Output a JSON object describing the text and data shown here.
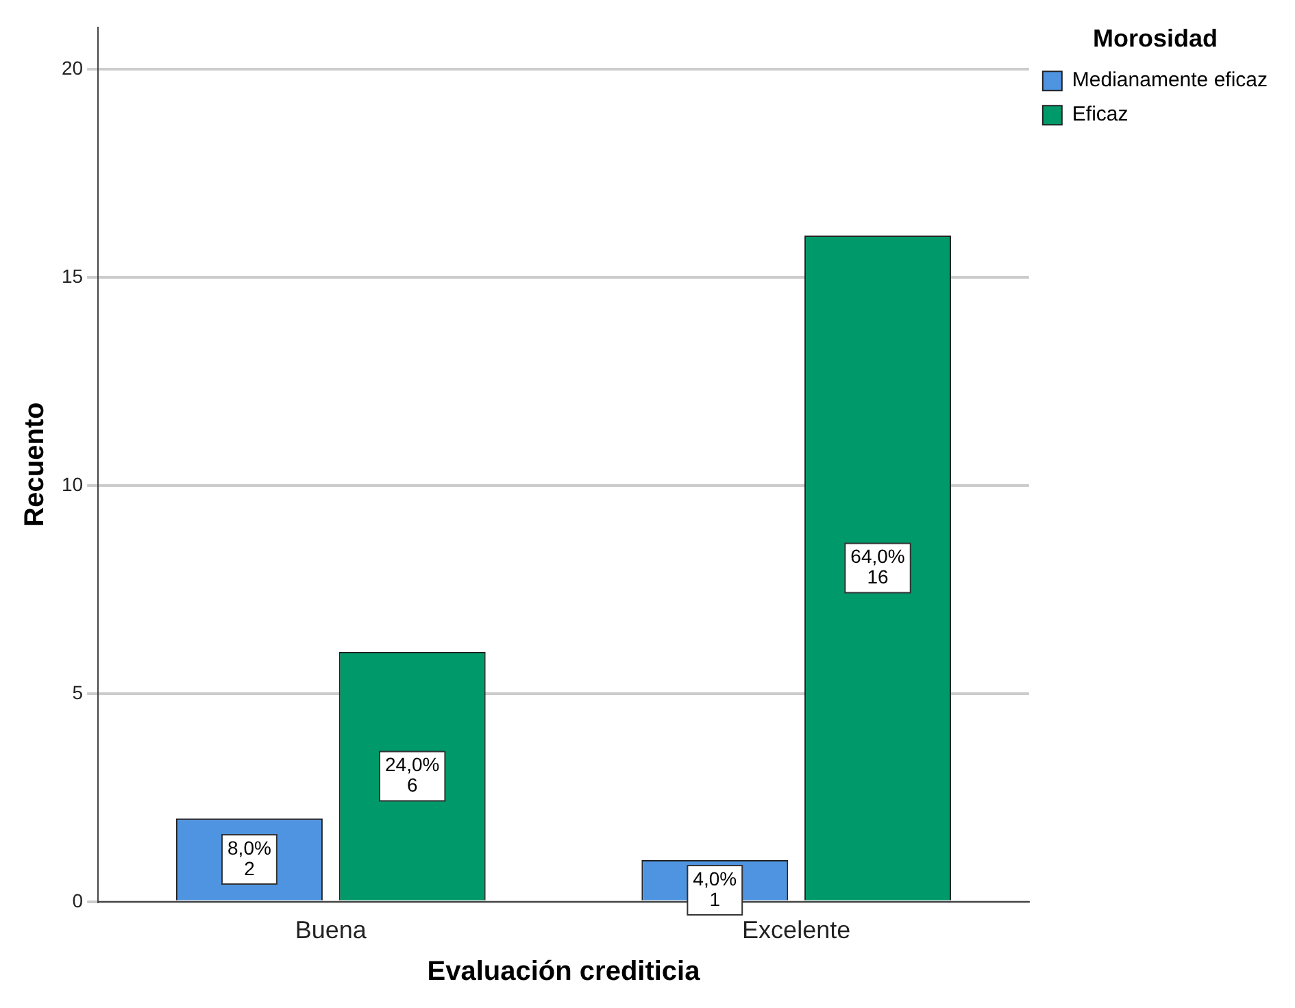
{
  "chart_data": {
    "type": "bar",
    "xlabel": "Evaluación crediticia",
    "ylabel": "Recuento",
    "legend_title": "Morosidad",
    "legend": "top right",
    "categories": [
      "Buena",
      "Excelente"
    ],
    "series": [
      {
        "name": "Medianamente eficaz",
        "color": "#4f94e0",
        "values": [
          2,
          1
        ],
        "value_labels": [
          "8,0%\n2",
          "4,0%\n1"
        ]
      },
      {
        "name": "Eficaz",
        "color": "#00996a",
        "values": [
          6,
          16
        ],
        "value_labels": [
          "24,0%\n6",
          "64,0%\n16"
        ]
      }
    ],
    "ylim": [
      0,
      21
    ],
    "yticks": [
      0,
      5,
      10,
      15,
      20
    ],
    "grid": "y"
  }
}
